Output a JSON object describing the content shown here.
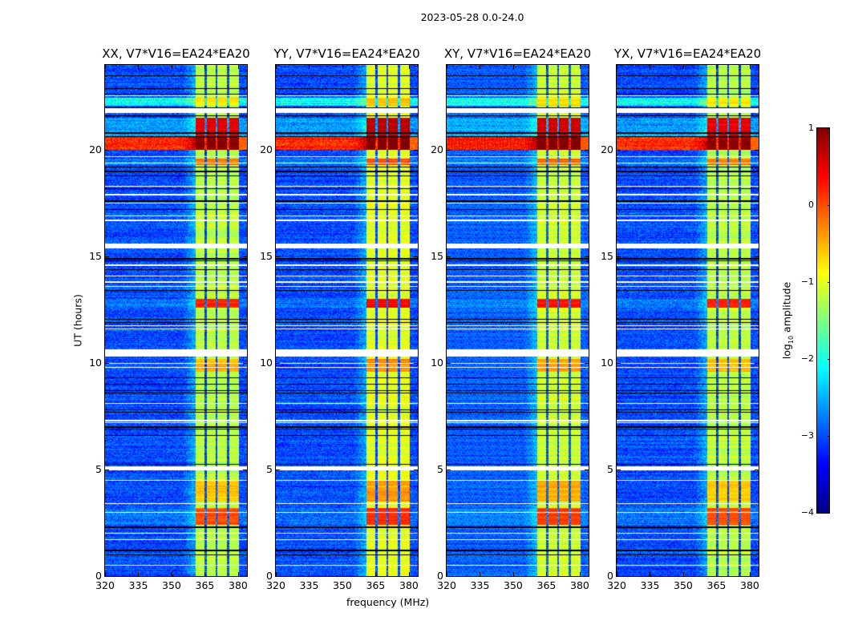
{
  "chart_data": {
    "type": "heatmap",
    "title": "2023-05-28 0.0-24.0",
    "xlabel": "frequency (MHz)",
    "ylabel": "UT (hours)",
    "xlim": [
      320,
      384
    ],
    "ylim": [
      0,
      24
    ],
    "xticks": [
      "320",
      "335",
      "350",
      "365",
      "380"
    ],
    "xtick_values": [
      320,
      335,
      350,
      365,
      380
    ],
    "yticks": [
      "0",
      "5",
      "10",
      "15",
      "20"
    ],
    "ytick_values": [
      0,
      5,
      10,
      15,
      20
    ],
    "colorbar": {
      "label_prefix": "log",
      "label_sub": "10",
      "label_suffix": " amplitude",
      "range": [
        -4,
        1
      ],
      "colormap": "jet",
      "ticks": [
        "−4",
        "−3",
        "−2",
        "−1",
        "0",
        "1"
      ],
      "tick_values": [
        -4,
        -3,
        -2,
        -1,
        0,
        1
      ]
    },
    "panels": [
      {
        "title": "XX, V7*V16=EA24*EA20",
        "band_offset": 0.0,
        "seed": 11
      },
      {
        "title": "YY, V7*V16=EA24*EA20",
        "band_offset": 0.2,
        "seed": 23
      },
      {
        "title": "XY, V7*V16=EA24*EA20",
        "band_offset": 0.05,
        "seed": 37
      },
      {
        "title": "YX, V7*V16=EA24*EA20",
        "band_offset": 0.0,
        "seed": 51
      }
    ],
    "background_level": -3.0,
    "band_level": -1.2,
    "rfi_subbands": [
      [
        360.7,
        365
      ],
      [
        365.8,
        370
      ],
      [
        370.8,
        375
      ],
      [
        375.9,
        380.4
      ]
    ],
    "flagged_hours": [
      [
        21.75,
        21.95
      ],
      [
        15.4,
        15.62
      ],
      [
        10.3,
        10.65
      ],
      [
        4.95,
        5.15
      ]
    ],
    "flagged_lines_hours": [
      22.55,
      19.4,
      19.7,
      18.3,
      17.9,
      17.5,
      16.9,
      16.7,
      14.6,
      14.1,
      13.8,
      13.6,
      11.6,
      11.75,
      10.0,
      9.8,
      8.1,
      7.3,
      7.2,
      4.5,
      3.4,
      3.0,
      2.0,
      1.7,
      0.5
    ],
    "zero_lines_hours": [
      23.5,
      22.9,
      22.62,
      22.0,
      21.6,
      20.8,
      20.63,
      19.2,
      19.0,
      18.8,
      18.2,
      17.6,
      17.2,
      14.9,
      14.8,
      14.4,
      13.4,
      12.05,
      11.9,
      9.3,
      9.0,
      8.7,
      8.6,
      7.8,
      7.7,
      7.0,
      6.9,
      6.6,
      5.25,
      2.3,
      1.2,
      1.0
    ],
    "bright_periods": [
      {
        "start": 20.0,
        "end": 20.6,
        "band": 1.0,
        "background": 0.2
      },
      {
        "start": 20.6,
        "end": 21.5,
        "band": 0.5,
        "background": -2.6
      },
      {
        "start": 22.1,
        "end": 22.45,
        "band": -0.8,
        "background": -2.1
      },
      {
        "start": 19.3,
        "end": 19.6,
        "band": -0.2,
        "background": -2.8
      },
      {
        "start": 12.6,
        "end": 13.0,
        "band": 0.2,
        "background": -2.8
      },
      {
        "start": 2.4,
        "end": 3.2,
        "band": 0.0,
        "background": -2.8
      },
      {
        "start": 3.5,
        "end": 4.5,
        "band": -0.6,
        "background": -3.0
      },
      {
        "start": 9.6,
        "end": 10.2,
        "band": -0.5,
        "background": -3.0
      }
    ]
  }
}
